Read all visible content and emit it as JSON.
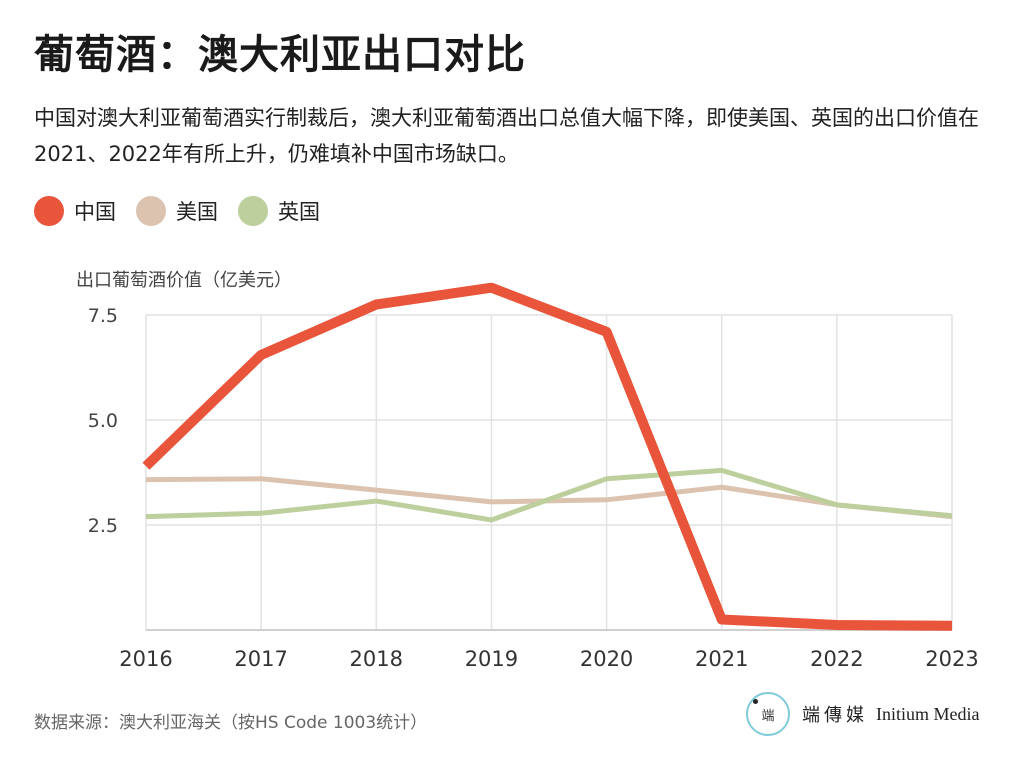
{
  "header": {
    "title": "葡萄酒：澳大利亚出口对比",
    "subtitle": "中国对澳大利亚葡萄酒实行制裁后，澳大利亚葡萄酒出口总值大幅下降，即使美国、英国的出口价值在2021、2022年有所上升，仍难填补中国市场缺口。"
  },
  "footer": {
    "source": "数据来源：澳大利亚海关（按HS Code 1003统计）",
    "brand_logo_text": "端",
    "brand_cn": "端傳媒",
    "brand_en": "Initium Media"
  },
  "chart_data": {
    "type": "line",
    "title": "葡萄酒：澳大利亚出口对比",
    "ylabel": "出口葡萄酒价值（亿美元）",
    "xlabel": "",
    "x": [
      "2016",
      "2017",
      "2018",
      "2019",
      "2020",
      "2021",
      "2022",
      "2023"
    ],
    "ylim": [
      0,
      7.5
    ],
    "yticks": [
      2.5,
      5.0,
      7.5
    ],
    "ytick_labels": [
      "2.5",
      "5.0",
      "7.5"
    ],
    "grid": true,
    "legend_position": "top-left",
    "series": [
      {
        "name": "中国",
        "color": "#e8553a",
        "values": [
          3.9,
          6.55,
          7.75,
          8.15,
          7.1,
          0.25,
          0.12,
          0.1
        ]
      },
      {
        "name": "美国",
        "color": "#dcc3b0",
        "values": [
          3.58,
          3.6,
          3.33,
          3.05,
          3.1,
          3.4,
          2.98,
          2.7
        ]
      },
      {
        "name": "英国",
        "color": "#bccf9c",
        "values": [
          2.7,
          2.78,
          3.07,
          2.62,
          3.6,
          3.8,
          2.98,
          2.72
        ]
      }
    ]
  }
}
